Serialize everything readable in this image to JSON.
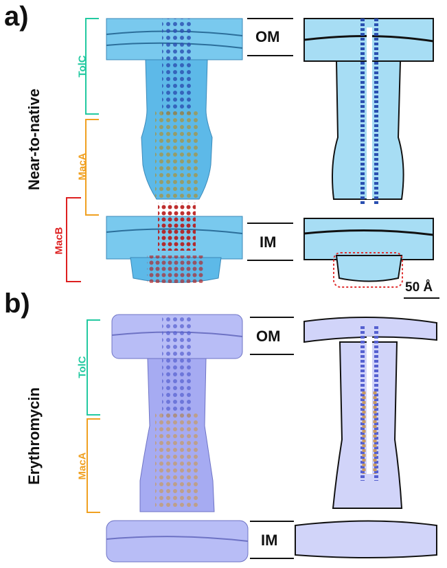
{
  "panels": [
    {
      "letter": "a)",
      "condition": "Near-to-native",
      "components": [
        {
          "name": "TolC",
          "color": "#22c9a0"
        },
        {
          "name": "MacA",
          "color": "#f0a020"
        },
        {
          "name": "MacB",
          "color": "#dd1f1f"
        }
      ],
      "membranes": [
        "OM",
        "IM"
      ],
      "map_color": "#6fc8ee"
    },
    {
      "letter": "b)",
      "condition": "Erythromycin",
      "components": [
        {
          "name": "TolC",
          "color": "#22c9a0"
        },
        {
          "name": "MacA",
          "color": "#f0a020"
        }
      ],
      "membranes": [
        "OM",
        "IM"
      ],
      "map_color": "#b8bdf6"
    }
  ],
  "scale_bar": "50 Å",
  "highlight_color": "#e03030"
}
